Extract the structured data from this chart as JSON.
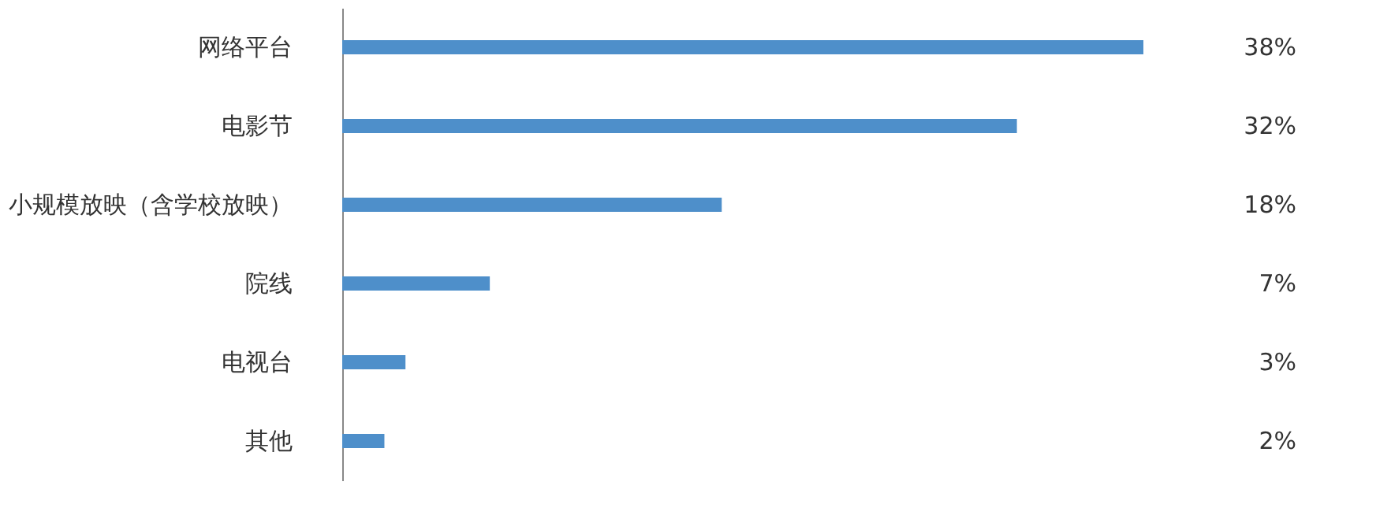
{
  "chart_data": {
    "type": "bar",
    "orientation": "horizontal",
    "categories": [
      "网络平台",
      "电影节",
      "小规模放映（含学校放映）",
      "院线",
      "电视台",
      "其他"
    ],
    "values": [
      38,
      32,
      18,
      7,
      3,
      2
    ],
    "value_labels": [
      "38%",
      "32%",
      "18%",
      "7%",
      "3%",
      "2%"
    ],
    "color": "#4e8fca"
  }
}
